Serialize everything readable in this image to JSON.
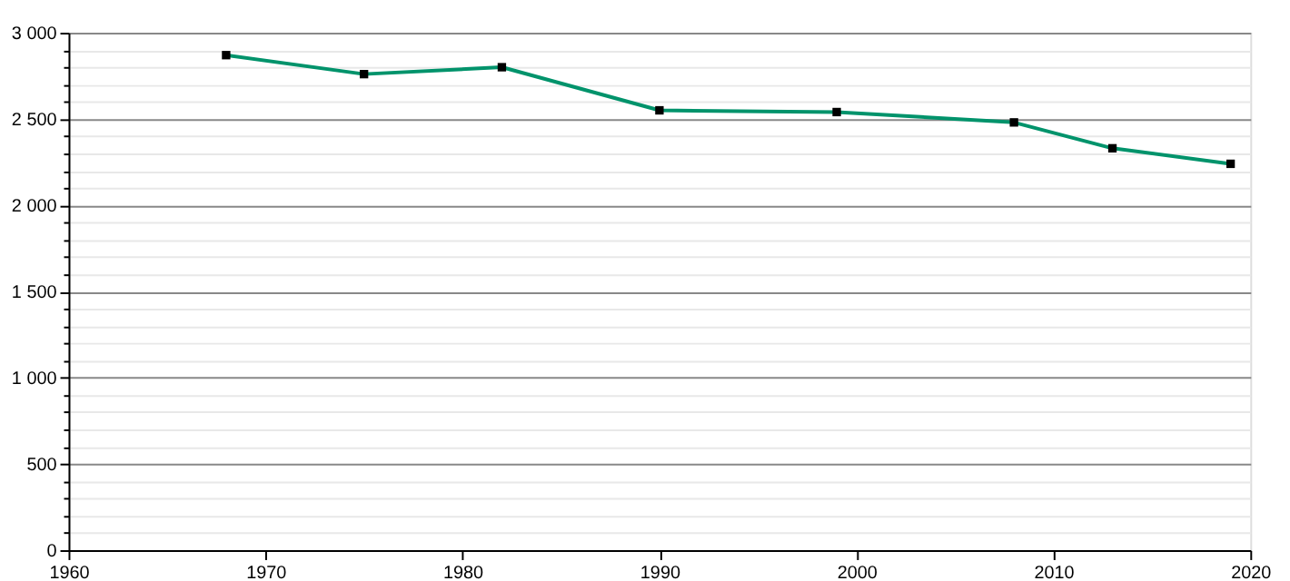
{
  "chart_data": {
    "type": "line",
    "x": [
      1968,
      1975,
      1982,
      1990,
      1999,
      2008,
      2013,
      2019
    ],
    "series": [
      {
        "color": "#00936b",
        "values": [
          2870,
          2760,
          2800,
          2550,
          2540,
          2480,
          2330,
          2240
        ]
      }
    ],
    "xlim": [
      1960,
      2020
    ],
    "xticks": [
      1960,
      1970,
      1980,
      1990,
      2000,
      2010,
      2020
    ],
    "ylim": [
      0,
      3000
    ],
    "yticks": [
      0,
      {
        "value": 100,
        "label": null
      },
      {
        "value": 200,
        "label": null
      },
      {
        "value": 300,
        "label": null
      },
      {
        "value": 400,
        "label": null
      },
      500,
      {
        "value": 600,
        "label": null
      },
      {
        "value": 700,
        "label": null
      },
      {
        "value": 800,
        "label": null
      },
      {
        "value": 900,
        "label": null
      },
      {
        "value": 1000,
        "label": "1 000"
      },
      {
        "value": 1100,
        "label": null
      },
      {
        "value": 1200,
        "label": null
      },
      {
        "value": 1300,
        "label": null
      },
      {
        "value": 1400,
        "label": null
      },
      {
        "value": 1500,
        "label": "1 500"
      },
      {
        "value": 1600,
        "label": null
      },
      {
        "value": 1700,
        "label": null
      },
      {
        "value": 1800,
        "label": null
      },
      {
        "value": 1900,
        "label": null
      },
      {
        "value": 2000,
        "label": "2 000"
      },
      {
        "value": 2100,
        "label": null
      },
      {
        "value": 2200,
        "label": null
      },
      {
        "value": 2300,
        "label": null
      },
      {
        "value": 2400,
        "label": null
      },
      {
        "value": 2500,
        "label": "2 500"
      },
      {
        "value": 2600,
        "label": null
      },
      {
        "value": 2700,
        "label": null
      },
      {
        "value": 2800,
        "label": null
      },
      {
        "value": 2900,
        "label": null
      },
      {
        "value": 3000,
        "label": "3 000"
      }
    ],
    "grid": "y",
    "marker": "square",
    "line_style": "solid"
  }
}
